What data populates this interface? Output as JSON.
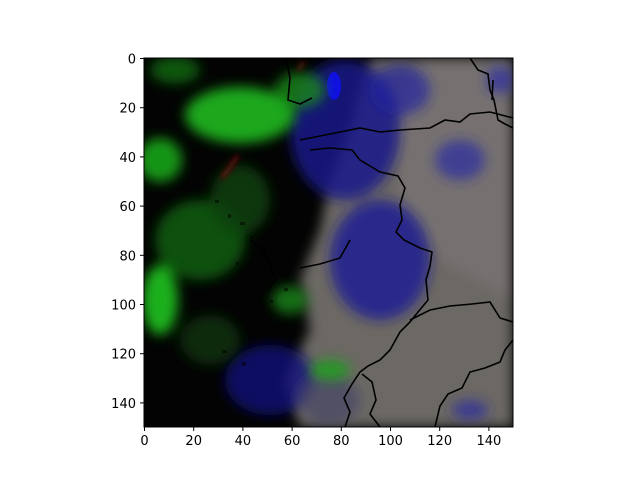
{
  "chart_data": {
    "type": "heatmap",
    "xlim": [
      0,
      150
    ],
    "ylim": [
      150,
      0
    ],
    "x_ticks": [
      0,
      20,
      40,
      60,
      80,
      100,
      120,
      140
    ],
    "y_ticks": [
      0,
      20,
      40,
      60,
      80,
      100,
      120,
      140
    ],
    "x_tick_labels": [
      "0",
      "20",
      "40",
      "60",
      "80",
      "100",
      "120",
      "140"
    ],
    "y_tick_labels": [
      "0",
      "20",
      "40",
      "60",
      "80",
      "100",
      "120",
      "140"
    ],
    "image_description_colors": {
      "background": "#000000",
      "vegetation_green": "#1fb51f",
      "water_blue": "#1a1aa0",
      "cloud_gray": "#6e6a66",
      "border_line": "#000000"
    },
    "grid": false,
    "legend": "none"
  }
}
